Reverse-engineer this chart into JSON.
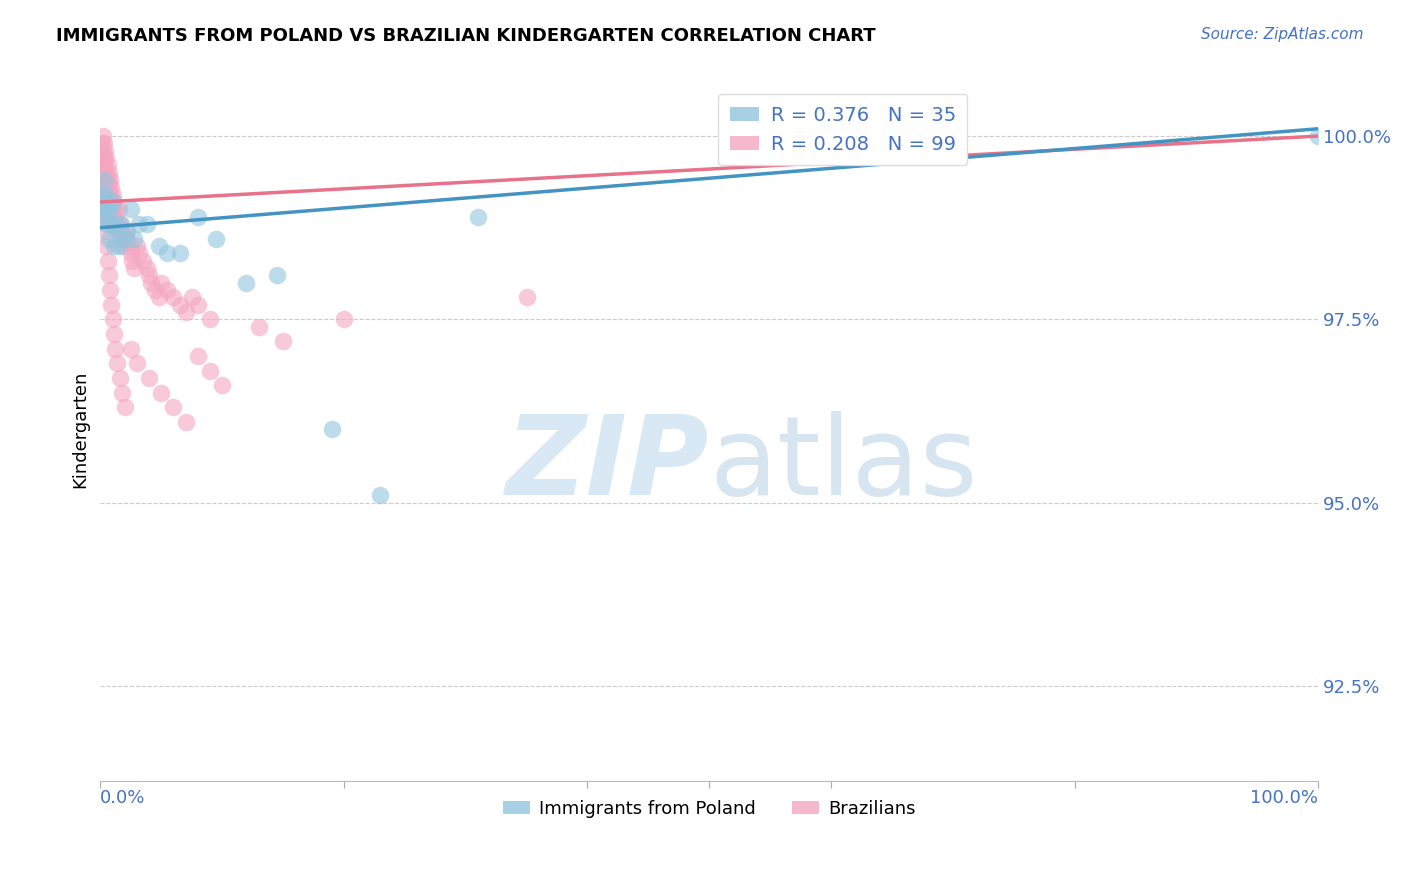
{
  "title": "IMMIGRANTS FROM POLAND VS BRAZILIAN KINDERGARTEN CORRELATION CHART",
  "source": "Source: ZipAtlas.com",
  "ylabel": "Kindergarten",
  "ytick_labels": [
    "100.0%",
    "97.5%",
    "95.0%",
    "92.5%"
  ],
  "ytick_values": [
    1.0,
    0.975,
    0.95,
    0.925
  ],
  "xmin": 0.0,
  "xmax": 1.0,
  "ymin": 0.912,
  "ymax": 1.008,
  "poland_color": "#92c5de",
  "brazil_color": "#f4a6c0",
  "poland_line_color": "#4393c3",
  "brazil_line_color": "#e8728a",
  "legend_poland_label": "R = 0.376   N = 35",
  "legend_brazil_label": "R = 0.208   N = 99",
  "legend_bottom_poland": "Immigrants from Poland",
  "legend_bottom_brazil": "Brazilians",
  "poland_line_x0": 0.0,
  "poland_line_y0": 0.9875,
  "poland_line_x1": 1.0,
  "poland_line_y1": 1.001,
  "brazil_line_x0": 0.0,
  "brazil_line_y0": 0.991,
  "brazil_line_x1": 1.0,
  "brazil_line_y1": 1.0,
  "poland_x": [
    0.001,
    0.002,
    0.003,
    0.003,
    0.004,
    0.005,
    0.005,
    0.006,
    0.007,
    0.008,
    0.009,
    0.01,
    0.011,
    0.012,
    0.014,
    0.015,
    0.017,
    0.02,
    0.022,
    0.025,
    0.028,
    0.032,
    0.038,
    0.048,
    0.055,
    0.065,
    0.08,
    0.095,
    0.12,
    0.145,
    0.19,
    0.23,
    0.31,
    0.62,
    1.0
  ],
  "poland_y": [
    0.99,
    0.992,
    0.989,
    0.994,
    0.991,
    0.988,
    0.992,
    0.99,
    0.986,
    0.99,
    0.988,
    0.991,
    0.985,
    0.988,
    0.987,
    0.985,
    0.988,
    0.986,
    0.987,
    0.99,
    0.986,
    0.988,
    0.988,
    0.985,
    0.984,
    0.984,
    0.989,
    0.986,
    0.98,
    0.981,
    0.96,
    0.951,
    0.989,
    0.997,
    1.0
  ],
  "brazil_x": [
    0.001,
    0.001,
    0.001,
    0.002,
    0.002,
    0.002,
    0.002,
    0.003,
    0.003,
    0.003,
    0.003,
    0.003,
    0.004,
    0.004,
    0.004,
    0.004,
    0.005,
    0.005,
    0.005,
    0.005,
    0.006,
    0.006,
    0.006,
    0.006,
    0.007,
    0.007,
    0.007,
    0.007,
    0.008,
    0.008,
    0.008,
    0.009,
    0.009,
    0.01,
    0.01,
    0.011,
    0.011,
    0.012,
    0.012,
    0.013,
    0.014,
    0.015,
    0.015,
    0.016,
    0.017,
    0.018,
    0.019,
    0.02,
    0.021,
    0.022,
    0.024,
    0.025,
    0.026,
    0.028,
    0.03,
    0.032,
    0.035,
    0.038,
    0.04,
    0.042,
    0.045,
    0.048,
    0.05,
    0.055,
    0.06,
    0.065,
    0.07,
    0.075,
    0.08,
    0.09,
    0.001,
    0.002,
    0.003,
    0.004,
    0.005,
    0.006,
    0.007,
    0.008,
    0.009,
    0.01,
    0.011,
    0.012,
    0.014,
    0.016,
    0.018,
    0.02,
    0.025,
    0.03,
    0.04,
    0.05,
    0.06,
    0.07,
    0.08,
    0.09,
    0.1,
    0.13,
    0.15,
    0.2,
    0.35
  ],
  "brazil_y": [
    0.999,
    0.997,
    0.995,
    1.0,
    0.998,
    0.996,
    0.993,
    0.999,
    0.997,
    0.995,
    0.993,
    0.991,
    0.998,
    0.996,
    0.994,
    0.992,
    0.997,
    0.995,
    0.993,
    0.99,
    0.996,
    0.994,
    0.992,
    0.989,
    0.995,
    0.993,
    0.991,
    0.988,
    0.994,
    0.992,
    0.99,
    0.993,
    0.991,
    0.992,
    0.99,
    0.991,
    0.989,
    0.99,
    0.988,
    0.989,
    0.988,
    0.987,
    0.99,
    0.988,
    0.987,
    0.986,
    0.985,
    0.986,
    0.987,
    0.986,
    0.985,
    0.984,
    0.983,
    0.982,
    0.985,
    0.984,
    0.983,
    0.982,
    0.981,
    0.98,
    0.979,
    0.978,
    0.98,
    0.979,
    0.978,
    0.977,
    0.976,
    0.978,
    0.977,
    0.975,
    0.993,
    0.991,
    0.989,
    0.987,
    0.985,
    0.983,
    0.981,
    0.979,
    0.977,
    0.975,
    0.973,
    0.971,
    0.969,
    0.967,
    0.965,
    0.963,
    0.971,
    0.969,
    0.967,
    0.965,
    0.963,
    0.961,
    0.97,
    0.968,
    0.966,
    0.974,
    0.972,
    0.975,
    0.978
  ]
}
